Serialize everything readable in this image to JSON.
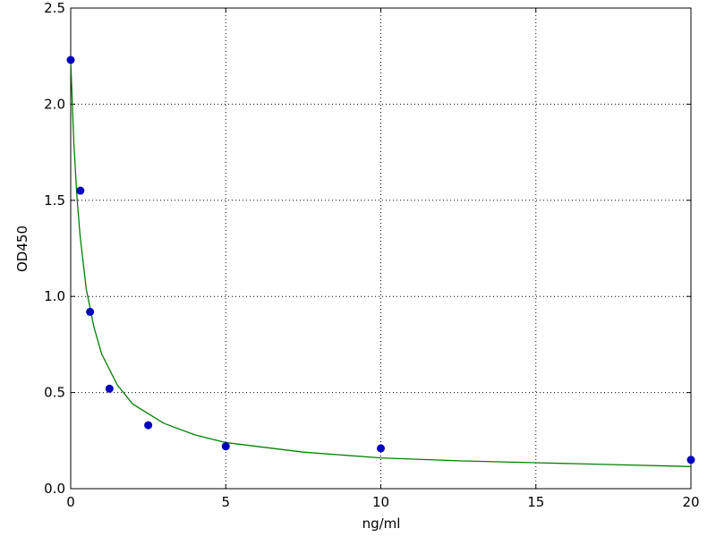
{
  "chart_data": {
    "type": "scatter",
    "x_label": "ng/ml",
    "y_label": "OD450",
    "xlim": [
      0,
      20
    ],
    "ylim": [
      0,
      2.5
    ],
    "xticks": [
      0,
      5,
      10,
      15,
      20
    ],
    "yticks": [
      {
        "value": 0,
        "label": "0.0"
      },
      0.5,
      {
        "value": 1,
        "label": "1.0"
      },
      1.5,
      {
        "value": 2,
        "label": "2.0"
      },
      2.5
    ],
    "grid": true,
    "series": [
      {
        "name": "data",
        "color": "#0000bf",
        "kind": "points",
        "x": [
          0,
          0.3125,
          0.625,
          1.25,
          2.5,
          5,
          10,
          20
        ],
        "values": [
          2.23,
          1.55,
          0.92,
          0.52,
          0.33,
          0.22,
          0.21,
          0.15
        ]
      },
      {
        "name": "fit",
        "color": "#008000",
        "kind": "line",
        "x": [
          0,
          0.1,
          0.2,
          0.3,
          0.5,
          0.75,
          1,
          1.5,
          2,
          3,
          4,
          5,
          7.5,
          10,
          12.5,
          15,
          17.5,
          20
        ],
        "values": [
          2.23,
          1.8,
          1.52,
          1.32,
          1.04,
          0.84,
          0.7,
          0.54,
          0.44,
          0.34,
          0.28,
          0.24,
          0.19,
          0.16,
          0.145,
          0.135,
          0.125,
          0.115
        ]
      }
    ]
  }
}
